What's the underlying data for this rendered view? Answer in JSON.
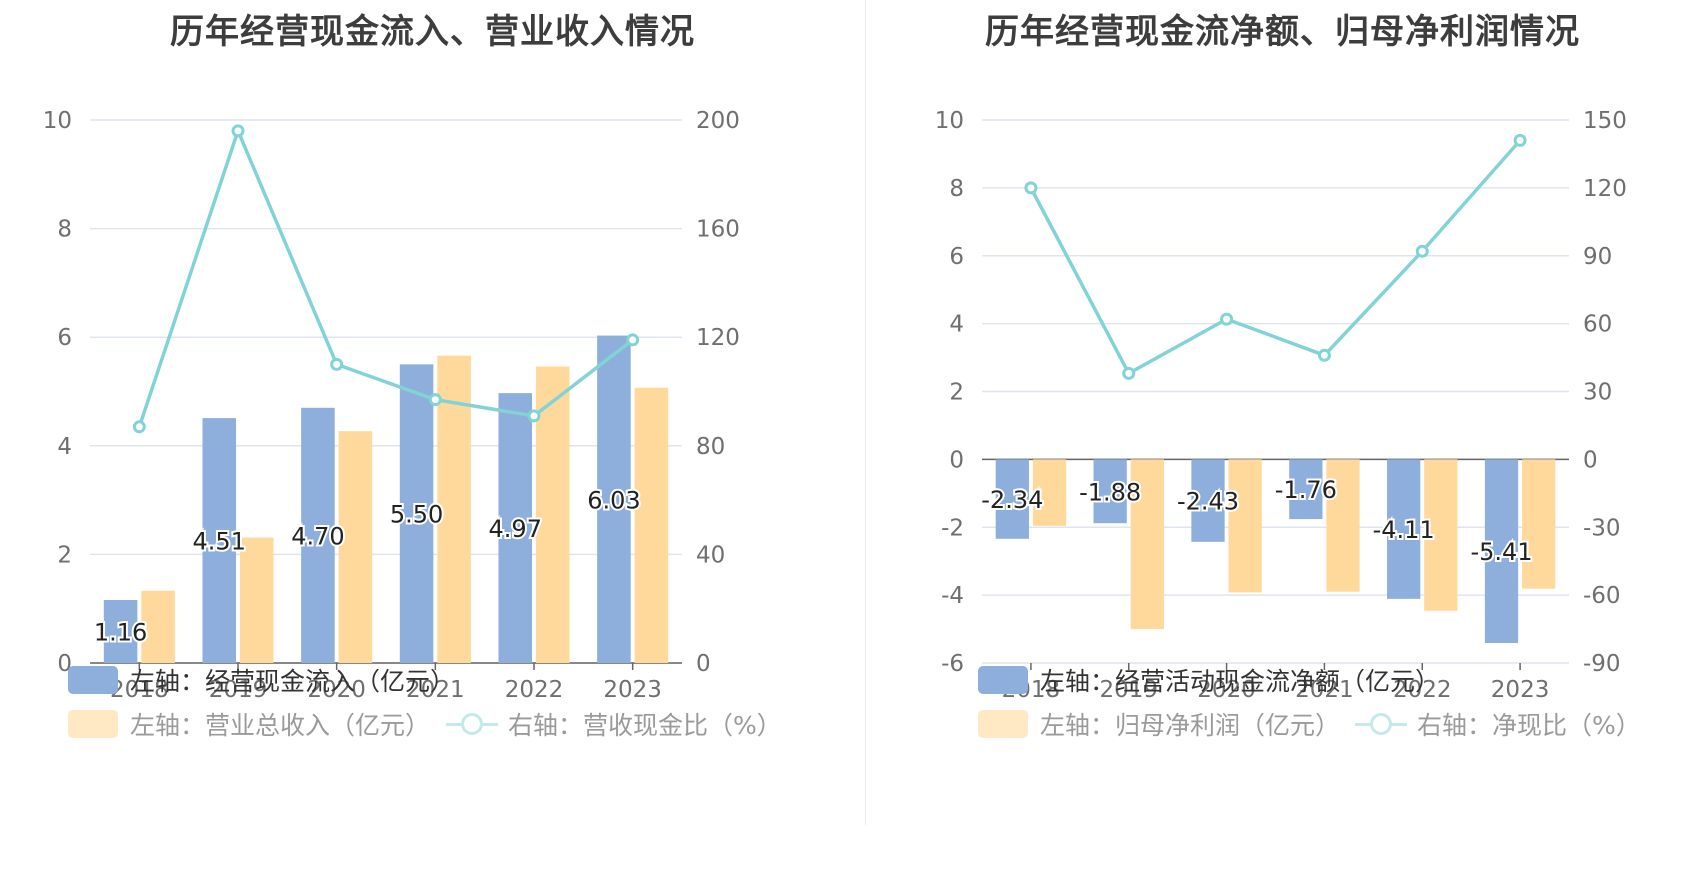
{
  "colors": {
    "bar_primary": "#8eaedb",
    "bar_secondary": "#ffd99b",
    "line": "#82d3d6",
    "grid": "#dfe4ef",
    "axis": "#666666"
  },
  "chart_data": [
    {
      "type": "bar",
      "title": "历年经营现金流入、营业收入情况",
      "categories": [
        "2018",
        "2019",
        "2020",
        "2021",
        "2022",
        "2023"
      ],
      "series": [
        {
          "name": "左轴：经营现金流入（亿元）",
          "axis": "left",
          "type": "bar",
          "values": [
            1.16,
            4.51,
            4.7,
            5.5,
            4.97,
            6.03
          ],
          "labels": [
            "1.16",
            "4.51",
            "4.70",
            "5.50",
            "4.97",
            "6.03"
          ]
        },
        {
          "name": "左轴：营业总收入（亿元）",
          "axis": "left",
          "type": "bar",
          "values": [
            1.33,
            2.31,
            4.27,
            5.66,
            5.46,
            5.07
          ]
        },
        {
          "name": "右轴：营收现金比（%）",
          "axis": "right",
          "type": "line",
          "values": [
            87,
            196,
            110,
            97,
            91,
            119
          ]
        }
      ],
      "yleft": {
        "min": 0,
        "max": 10,
        "ticks": [
          "0",
          "2",
          "4",
          "6",
          "8",
          "10"
        ]
      },
      "yright": {
        "min": 0,
        "max": 200,
        "ticks": [
          "0",
          "40",
          "80",
          "120",
          "160",
          "200"
        ]
      },
      "grid": true,
      "legend_position": "bottom-left"
    },
    {
      "type": "bar",
      "title": "历年经营现金流净额、归母净利润情况",
      "categories": [
        "2018",
        "2019",
        "2020",
        "2021",
        "2022",
        "2023"
      ],
      "series": [
        {
          "name": "左轴：经营活动现金流净额（亿元）",
          "axis": "left",
          "type": "bar",
          "values": [
            -2.34,
            -1.88,
            -2.43,
            -1.76,
            -4.11,
            -5.41
          ],
          "labels": [
            "-2.34",
            "-1.88",
            "-2.43",
            "-1.76",
            "-4.11",
            "-5.41"
          ]
        },
        {
          "name": "左轴：归母净利润（亿元）",
          "axis": "left",
          "type": "bar",
          "values": [
            -1.96,
            -5.0,
            -3.92,
            -3.9,
            -4.46,
            -3.81
          ]
        },
        {
          "name": "右轴：净现比（%）",
          "axis": "right",
          "type": "line",
          "values": [
            120,
            38,
            62,
            46,
            92,
            141
          ]
        }
      ],
      "yleft": {
        "min": -6,
        "max": 10,
        "ticks": [
          "-6",
          "-4",
          "-2",
          "0",
          "2",
          "4",
          "6",
          "8",
          "10"
        ]
      },
      "yright": {
        "min": -90,
        "max": 150,
        "ticks": [
          "-90",
          "-60",
          "-30",
          "0",
          "30",
          "60",
          "90",
          "120",
          "150"
        ]
      },
      "grid": true,
      "legend_position": "bottom-left"
    }
  ]
}
